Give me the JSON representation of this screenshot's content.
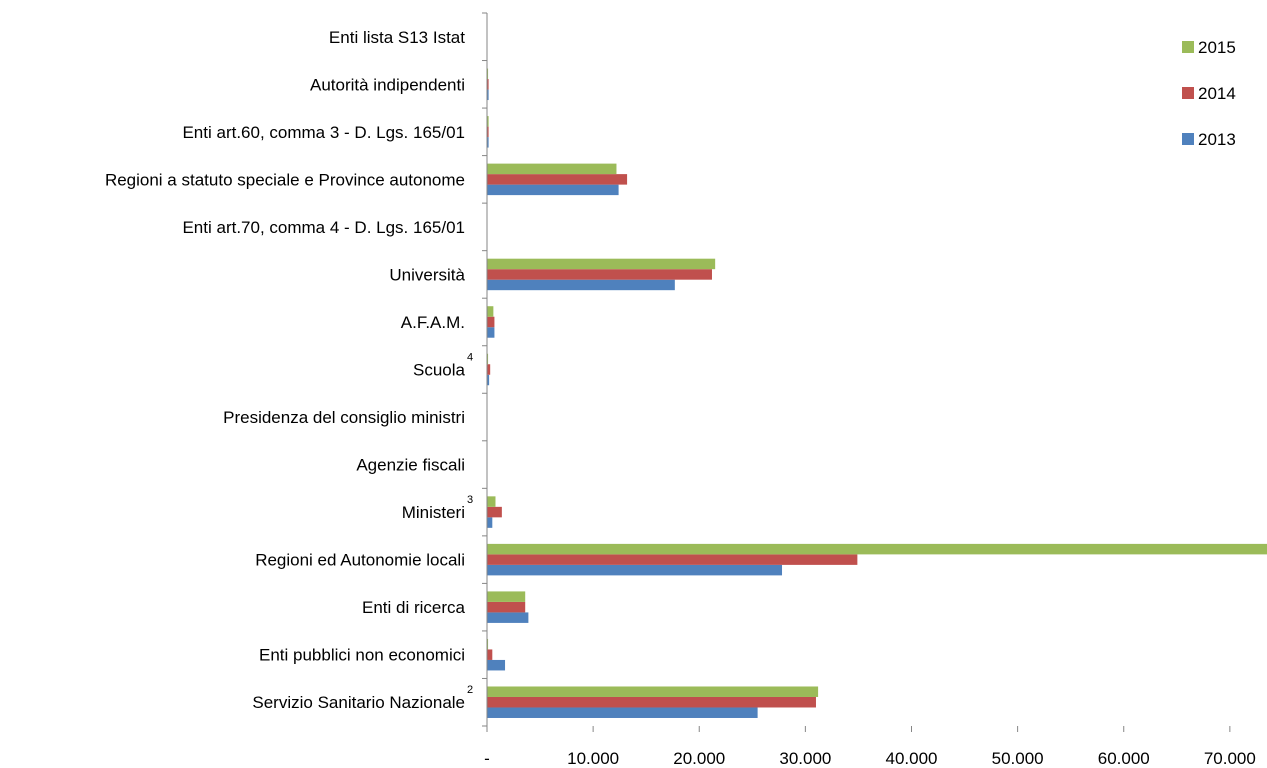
{
  "chart_data": {
    "type": "bar",
    "orientation": "horizontal",
    "categories": [
      "Servizio Sanitario Nazionale",
      "Enti pubblici non economici",
      "Enti di ricerca",
      "Regioni ed Autonomie locali",
      "Ministeri",
      "Agenzie fiscali",
      "Presidenza del consiglio ministri",
      "Scuola",
      "A.F.A.M.",
      "Università",
      "Enti art.70, comma 4 - D. Lgs. 165/01",
      "Regioni a statuto speciale e Province autonome",
      "Enti art.60, comma 3 - D. Lgs. 165/01",
      "Autorità indipendenti",
      "Enti lista S13 Istat"
    ],
    "category_superscripts": [
      "2",
      "",
      "",
      "",
      "3",
      "",
      "",
      "4",
      "",
      "",
      "",
      "",
      "",
      "",
      ""
    ],
    "series": [
      {
        "name": "2013",
        "color": "#4f81bd",
        "values": [
          25500,
          1700,
          3900,
          27800,
          500,
          0,
          0,
          200,
          700,
          17700,
          0,
          12400,
          150,
          150,
          0
        ]
      },
      {
        "name": "2014",
        "color": "#c0504d",
        "values": [
          31000,
          500,
          3600,
          34900,
          1400,
          0,
          0,
          300,
          700,
          21200,
          0,
          13200,
          150,
          150,
          0
        ]
      },
      {
        "name": "2015",
        "color": "#9bbb59",
        "values": [
          31200,
          100,
          3600,
          73500,
          800,
          0,
          0,
          100,
          600,
          21500,
          0,
          12200,
          150,
          100,
          0
        ]
      }
    ],
    "xlim": [
      0,
      73500
    ],
    "xticks": [
      0,
      10000,
      20000,
      30000,
      40000,
      50000,
      60000,
      70000
    ],
    "xtick_labels": [
      "-",
      "10.000",
      "20.000",
      "30.000",
      "40.000",
      "50.000",
      "60.000",
      "70.000"
    ],
    "grid": false,
    "legend_position": "top-right",
    "legend_order": [
      "2015",
      "2014",
      "2013"
    ],
    "title": "",
    "xlabel": "",
    "ylabel": ""
  }
}
